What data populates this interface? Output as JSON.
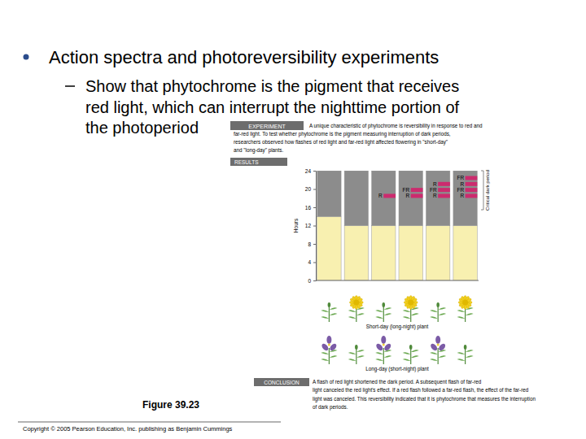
{
  "chart_data": {
    "type": "bar",
    "stacked": true,
    "title": "Action spectra and photoreversibility experiments",
    "subtitle": [
      "Show that phytochrome is the pigment that receives",
      "red light, which can interrupt the nighttime portion of",
      "the photoperiod"
    ],
    "experiment": {
      "label": "EXPERIMENT",
      "text": [
        "A unique characteristic of phytochrome is reversibility in response to red and",
        "far-red light. To test whether phytochrome is the pigment measuring interruption of dark periods,",
        "researchers observed how flashes of red light and far-red light affected flowering in \"short-day\"",
        "and \"long-day\" plants."
      ]
    },
    "results_label": "RESULTS",
    "conclusion": {
      "label": "CONCLUSION",
      "text": [
        "A flash of red light shortened the dark period. A subsequent flash of far-red",
        "light canceled the red light's effect. If a red flash followed a far-red flash, the effect of the far-red",
        "light was canceled. This reversibility indicated that it is phytochrome that measures the interruption",
        "of dark periods."
      ]
    },
    "figure_label": "Figure 39.23",
    "copyright": "Copyright © 2005 Pearson Education, Inc. publishing as Benjamin Cummings",
    "y_label": "Hours",
    "categories": [
      null,
      null,
      null,
      null,
      null,
      null
    ],
    "series": [
      {
        "color": "#f8f0b0",
        "values": [
          14,
          12,
          12,
          12,
          12,
          12
        ]
      },
      {
        "color": "#8c8c8c",
        "values": [
          10,
          12,
          12,
          12,
          12,
          12
        ]
      }
    ],
    "flashes": {
      "color": "#cc2b6e",
      "bars": [
        [],
        [],
        [
          {
            "label": "R",
            "hour": 18.5
          }
        ],
        [
          {
            "label": "R",
            "hour": 18.5
          },
          {
            "label": "FR",
            "hour": 19.8
          }
        ],
        [
          {
            "label": "R",
            "hour": 18.5
          },
          {
            "label": "FR",
            "hour": 19.8
          },
          {
            "label": "R",
            "hour": 21.1
          }
        ],
        [
          {
            "label": "R",
            "hour": 18.5
          },
          {
            "label": "FR",
            "hour": 19.8
          },
          {
            "label": "R",
            "hour": 21.1
          },
          {
            "label": "FR",
            "hour": 22.4
          }
        ]
      ]
    },
    "critical_dark_period": {
      "label": "Critical dark period"
    },
    "plants": [
      {
        "label": "Short-day (long-night) plant",
        "flowering": [
          false,
          true,
          false,
          true,
          false,
          true
        ]
      },
      {
        "label": "Long-day (short-night) plant",
        "flowering": [
          true,
          false,
          true,
          false,
          true,
          false
        ]
      }
    ],
    "ylim": [
      0,
      24
    ],
    "yticks": [
      0,
      4,
      8,
      12,
      16,
      20,
      24
    ],
    "tick_labels": "y"
  }
}
